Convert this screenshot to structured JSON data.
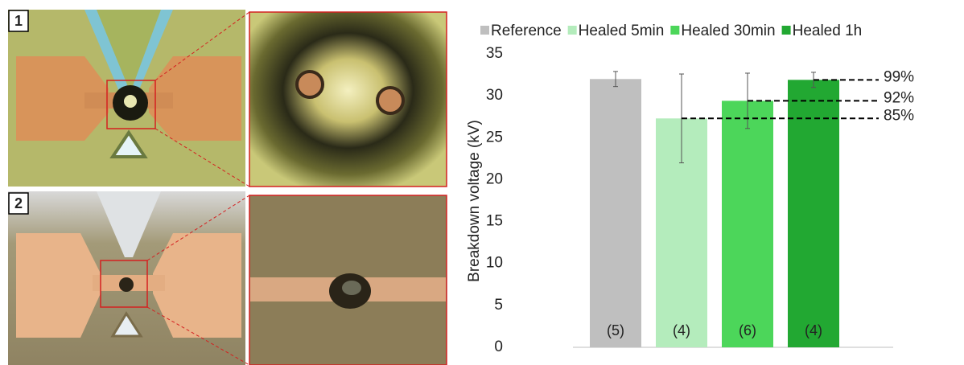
{
  "panels": [
    {
      "label": "1"
    },
    {
      "label": "2"
    }
  ],
  "chart_data": {
    "type": "bar",
    "ylabel": "Breakdown voltage (kV)",
    "categories": [
      null
    ],
    "series": [
      {
        "name": "Reference",
        "color": "#bfbfbf",
        "values": [
          32
        ],
        "errors": [
          0.9
        ],
        "sample_size": 5,
        "sample_size_label": "(5)"
      },
      {
        "name": "Healed 5min",
        "color": "#b4ecbc",
        "values": [
          27.3
        ],
        "errors": [
          5.3
        ],
        "sample_size": 4,
        "sample_size_label": "(4)"
      },
      {
        "name": "Healed 30min",
        "color": "#4cd65a",
        "values": [
          29.4
        ],
        "errors": [
          3.3
        ],
        "sample_size": 6,
        "sample_size_label": "(6)"
      },
      {
        "name": "Healed 1h",
        "color": "#22a832",
        "values": [
          31.9
        ],
        "errors": [
          0.9
        ],
        "sample_size": 4,
        "sample_size_label": "(4)"
      }
    ],
    "annotations": [
      {
        "text": "99%",
        "y": 31.9,
        "series": "Healed 1h"
      },
      {
        "text": "92%",
        "y": 29.4,
        "series": "Healed 30min"
      },
      {
        "text": "85%",
        "y": 27.3,
        "series": "Healed 5min"
      }
    ],
    "ylim": [
      0,
      35
    ],
    "yticks": [
      0,
      5,
      10,
      15,
      20,
      25,
      30,
      35
    ],
    "grid": false,
    "legend": "top"
  }
}
